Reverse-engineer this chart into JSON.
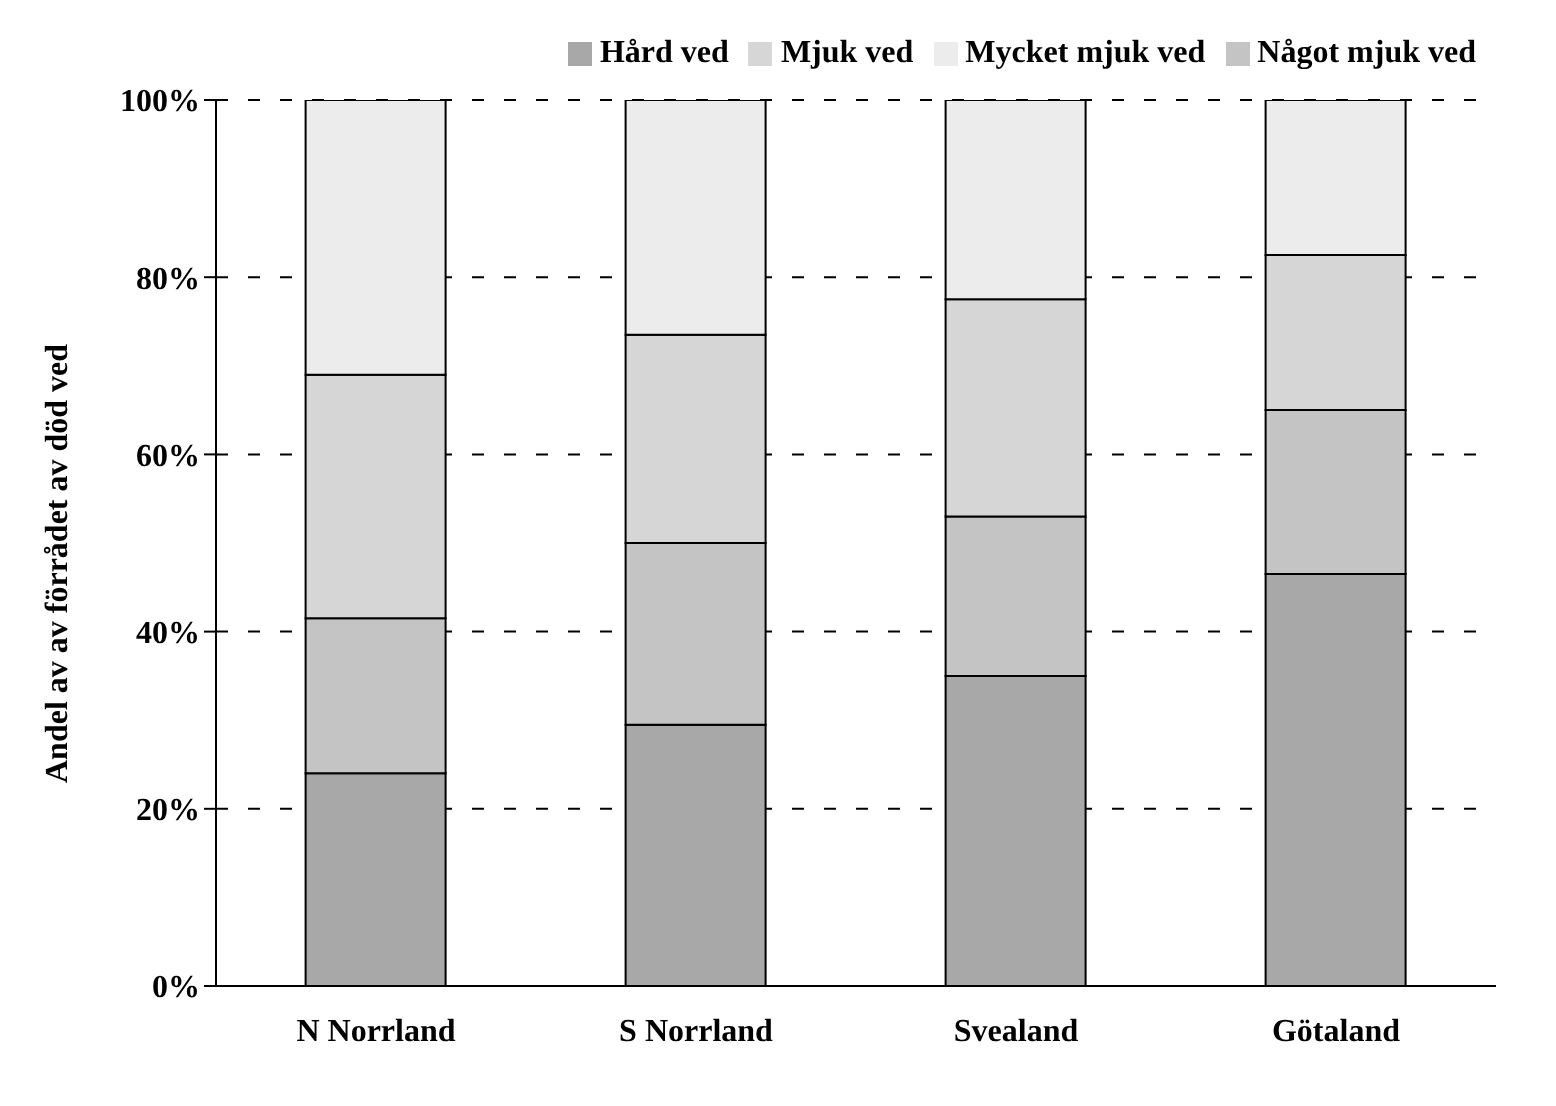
{
  "chart_data": {
    "type": "bar",
    "stacked": true,
    "ylabel": "Andel av av förrådet av död ved",
    "categories": [
      "N Norrland",
      "S Norrland",
      "Svealand",
      "Götaland"
    ],
    "series": [
      {
        "name": "Hård ved",
        "color": "#a8a8a8",
        "values": [
          24,
          29.5,
          35,
          46.5
        ]
      },
      {
        "name": "Något mjuk ved",
        "color": "#c4c4c4",
        "values": [
          17.5,
          20.5,
          18,
          18.5
        ]
      },
      {
        "name": "Mjuk ved",
        "color": "#d6d6d6",
        "values": [
          27.5,
          23.5,
          24.5,
          17.5
        ]
      },
      {
        "name": "Mycket mjuk ved",
        "color": "#ececec",
        "values": [
          31,
          26.5,
          22.5,
          17.5
        ]
      }
    ],
    "ylim": [
      0,
      100
    ],
    "yticks": [
      {
        "value": 0,
        "label": "0%"
      },
      {
        "value": 20,
        "label": "20%"
      },
      {
        "value": 40,
        "label": "40%"
      },
      {
        "value": 60,
        "label": "60%"
      },
      {
        "value": 80,
        "label": "80%"
      },
      {
        "value": 100,
        "label": "100%"
      }
    ],
    "grid": "y",
    "legend": "top"
  }
}
